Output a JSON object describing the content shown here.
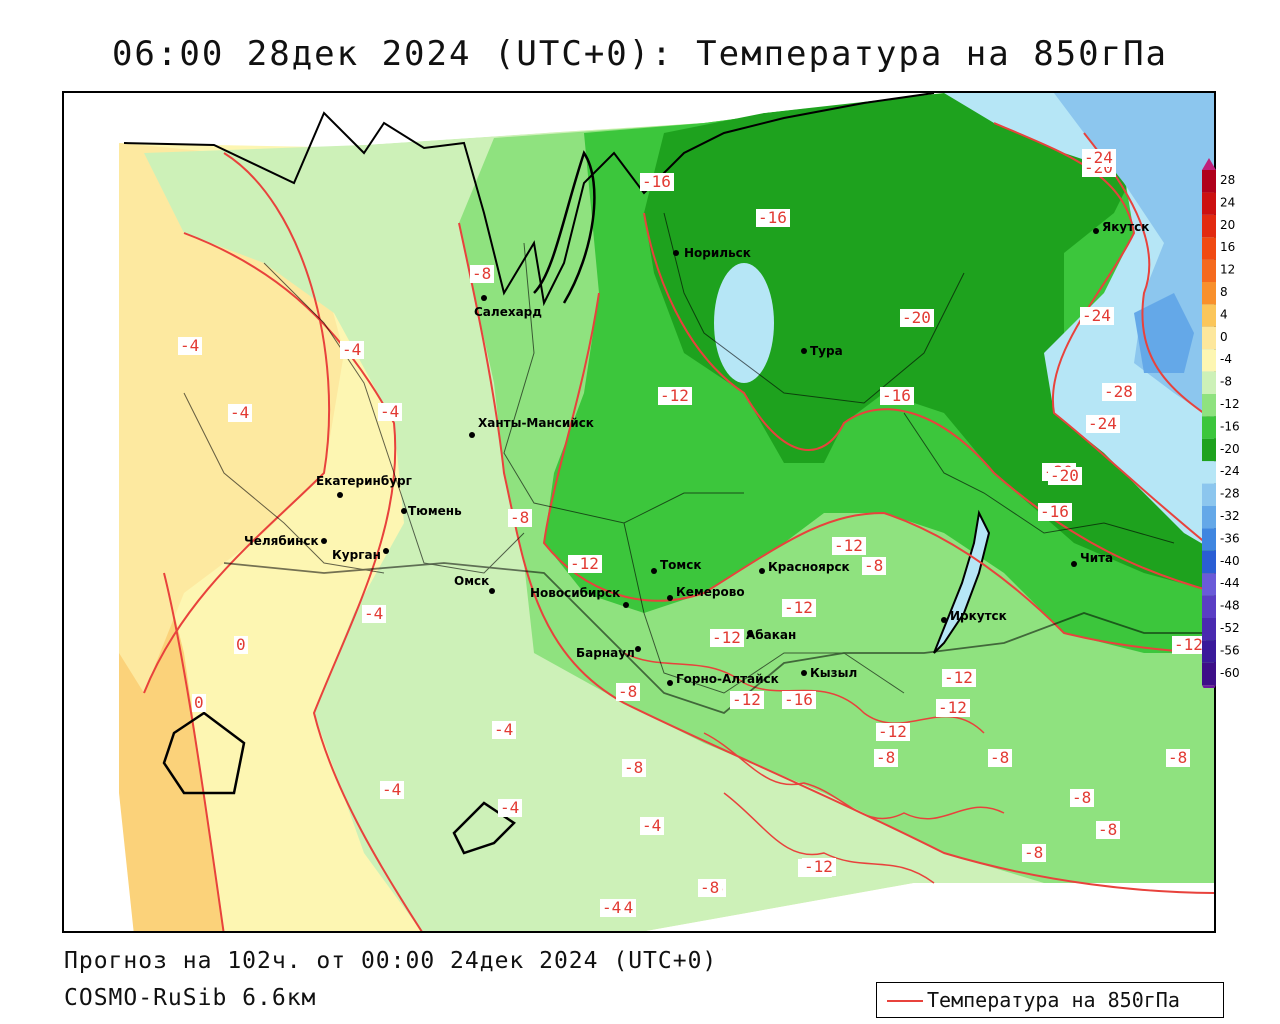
{
  "title": "06:00 28дек 2024 (UTC+0): Температура на 850гПа",
  "footer": {
    "forecast": "Прогноз на 102ч. от 00:00 24дек 2024 (UTC+0)",
    "model": "COSMO-RuSib 6.6км"
  },
  "legend": {
    "label": "Температура на 850гПа"
  },
  "colors": {
    "isoline": "#e8423c",
    "t_0_4": "#fde9a0",
    "t_m4_0": "#fdf6b2",
    "t_m8_m4": "#cdf1b8",
    "t_m12_m8": "#8fe27f",
    "t_m16_m12": "#3cc63c",
    "t_m20_m16": "#1ea21e",
    "t_m24_m20": "#b6e6f6",
    "t_m28_m24": "#8cc6ee",
    "warm": "#fbd27a"
  },
  "colorbar": {
    "levels": [
      "28",
      "24",
      "20",
      "16",
      "12",
      "8",
      "4",
      "0",
      "-4",
      "-8",
      "-12",
      "-16",
      "-20",
      "-24",
      "-28",
      "-32",
      "-36",
      "-40",
      "-44",
      "-48",
      "-52",
      "-56",
      "-60"
    ],
    "colors": [
      "#b0001a",
      "#cc1010",
      "#e22a10",
      "#f04a12",
      "#f56a1e",
      "#f8902c",
      "#fbc65a",
      "#fde79c",
      "#fdf6b2",
      "#cdf1b8",
      "#8fe27f",
      "#3cc63c",
      "#1ea21e",
      "#b6e6f6",
      "#8cc6ee",
      "#64a8e8",
      "#3f86e0",
      "#2a5ed4",
      "#6a5bd8",
      "#5a3ec4",
      "#4a2ab0",
      "#3a1a9a",
      "#3d0f88"
    ]
  },
  "cities": [
    {
      "name": "Норильск"
    },
    {
      "name": "Якутск"
    },
    {
      "name": "Салехард"
    },
    {
      "name": "Тура"
    },
    {
      "name": "Ханты-Мансийск"
    },
    {
      "name": "Екатеринбург"
    },
    {
      "name": "Тюмень"
    },
    {
      "name": "Челябинск"
    },
    {
      "name": "Курган"
    },
    {
      "name": "Омск"
    },
    {
      "name": "Томск"
    },
    {
      "name": "Красноярск"
    },
    {
      "name": "Новосибирск"
    },
    {
      "name": "Кемерово"
    },
    {
      "name": "Абакан"
    },
    {
      "name": "Барнаул"
    },
    {
      "name": "Иркутск"
    },
    {
      "name": "Чита"
    },
    {
      "name": "Кызыл"
    },
    {
      "name": "Горно-Алтайск"
    }
  ],
  "isoline_labels": [
    "-16",
    "-16",
    "-20",
    "-24",
    "-20",
    "-24",
    "-8",
    "-4",
    "-4",
    "-4",
    "-4",
    "-12",
    "-16",
    "-20",
    "-28",
    "-24",
    "-20",
    "-16",
    "-8",
    "-12",
    "-12",
    "-8",
    "-12",
    "-12",
    "-12",
    "0",
    "0",
    "-8",
    "-12",
    "-16",
    "-12",
    "-4",
    "-8",
    "-8",
    "-12",
    "-8",
    "-12",
    "-4",
    "-4",
    "-4",
    "-8",
    "-8",
    "-12",
    "-8",
    "-8",
    "-8",
    "-4",
    "-4",
    "-4",
    "-8",
    "-12"
  ]
}
